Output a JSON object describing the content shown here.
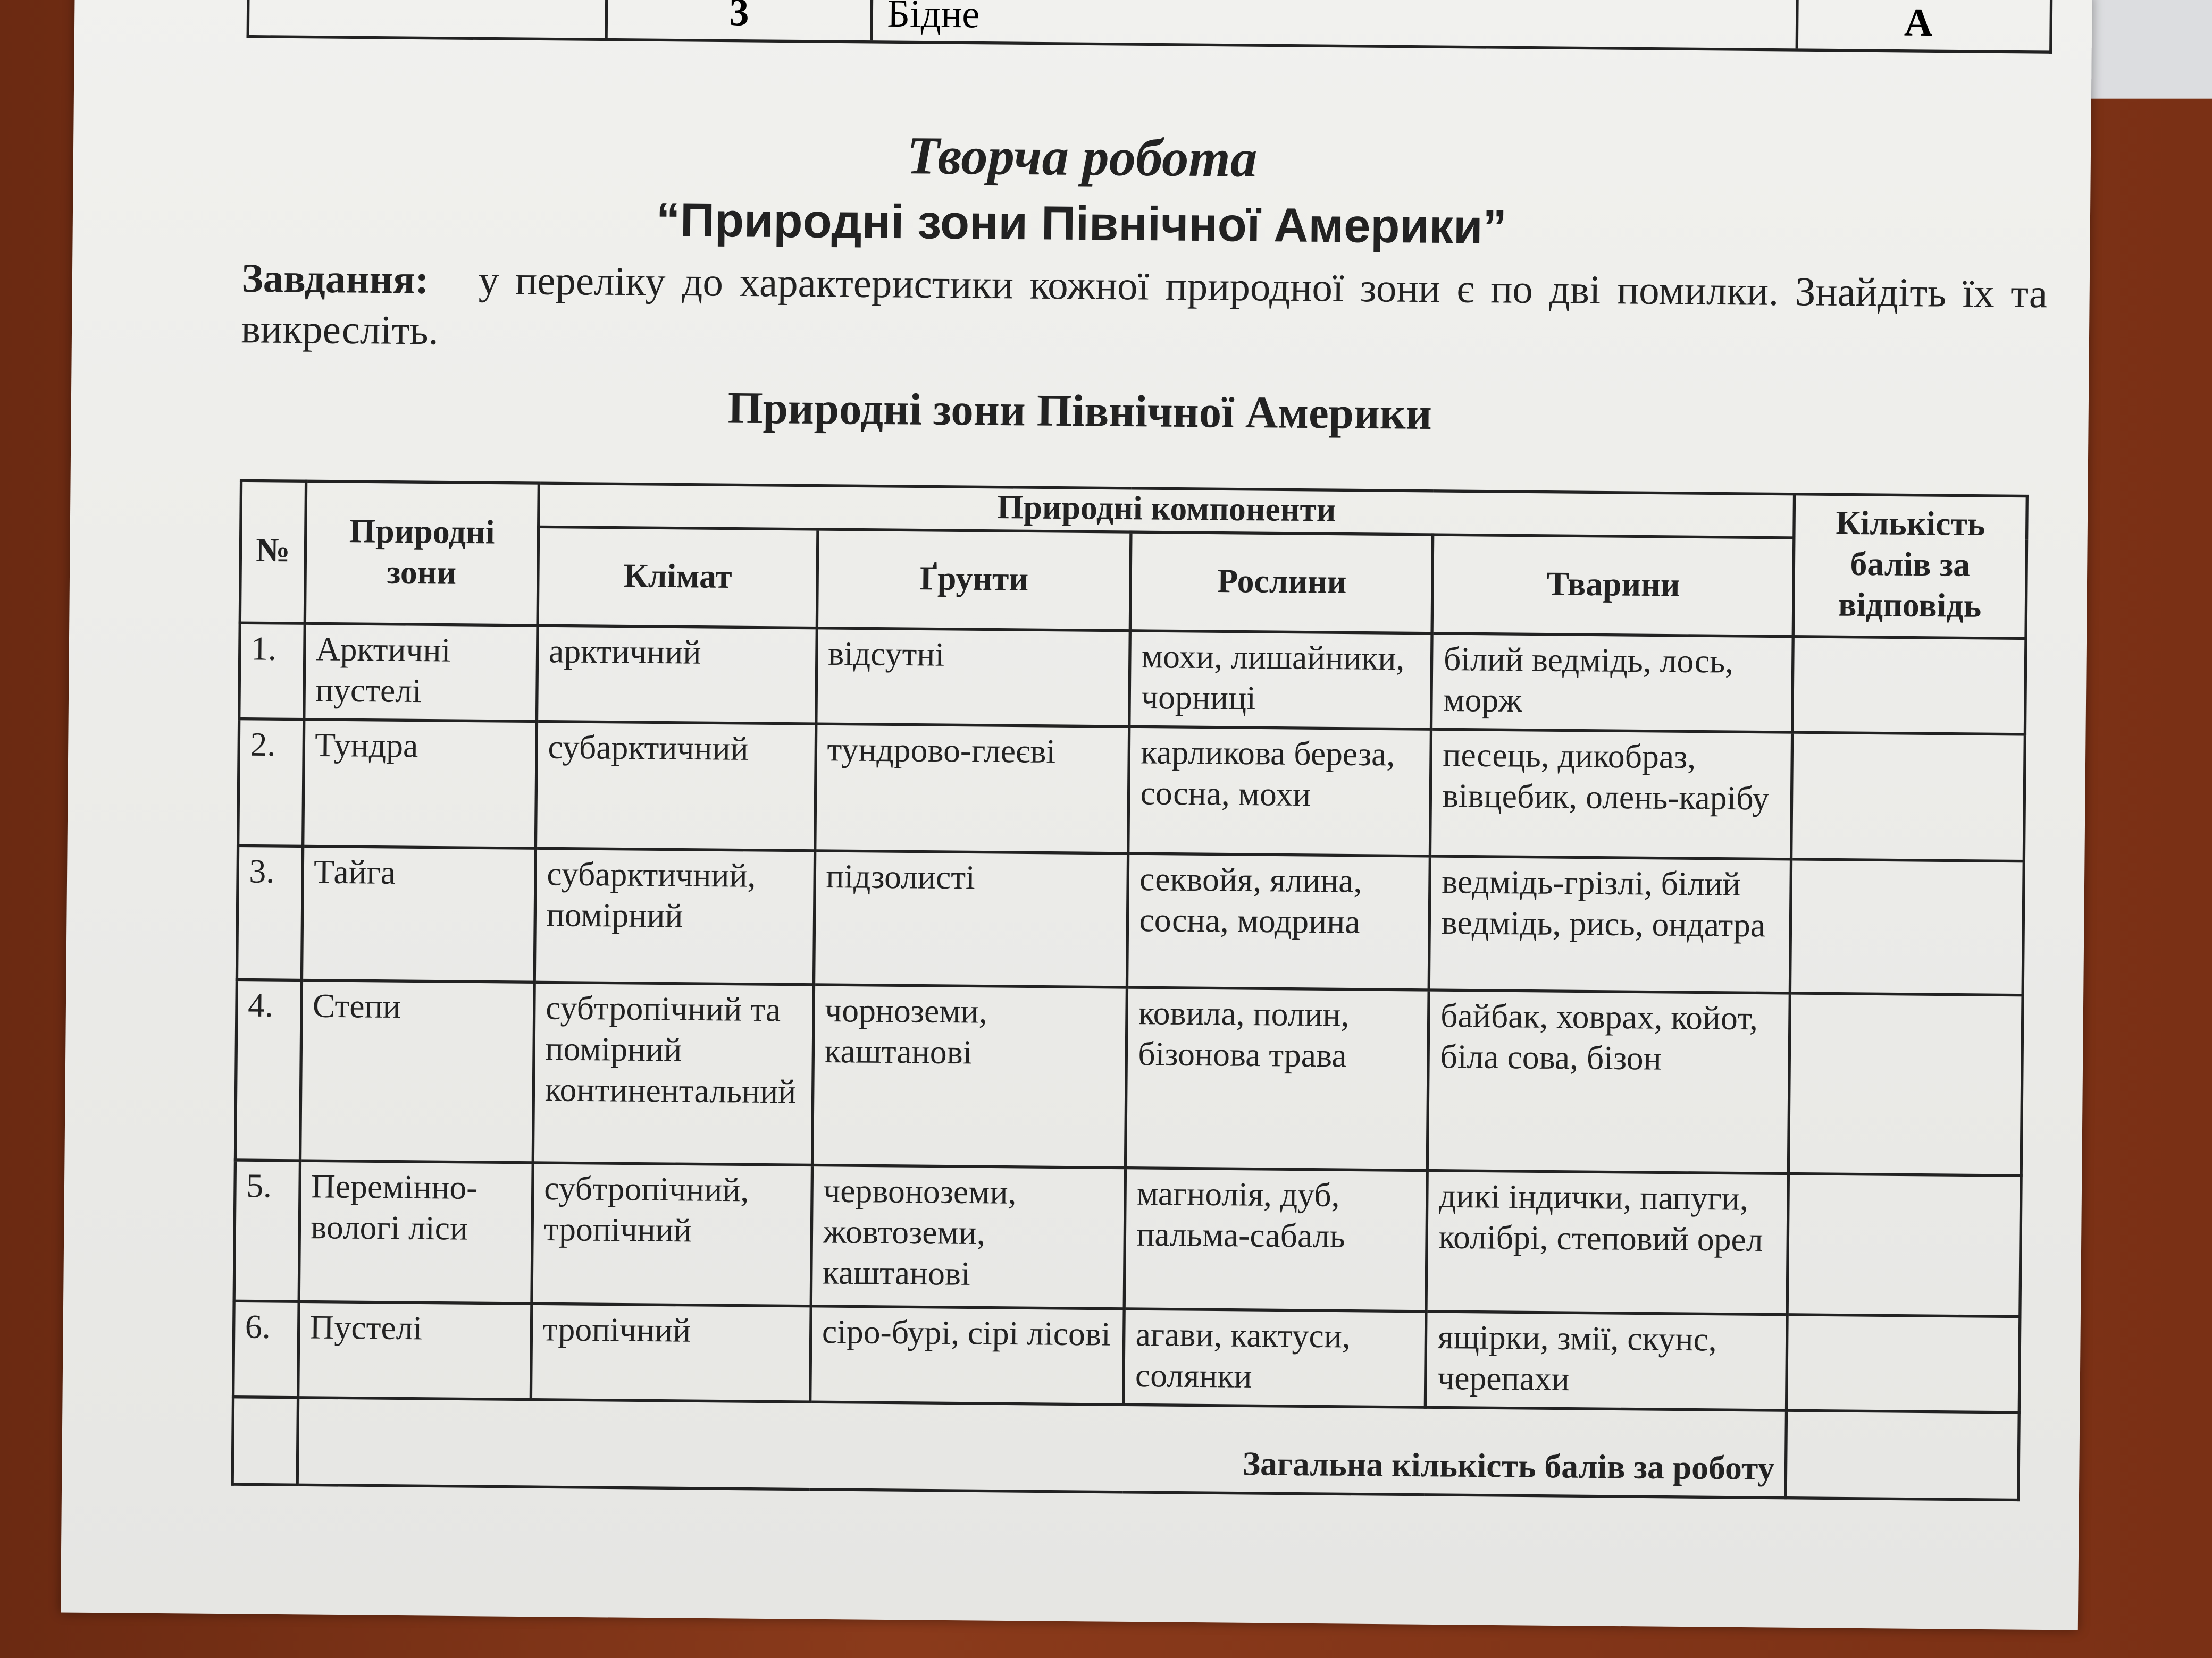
{
  "top_row": {
    "cells": [
      "3",
      "Бідне",
      "А"
    ]
  },
  "header": {
    "title": "Творча робота",
    "subtitle": "“Природні зони Північної Америки”"
  },
  "task": {
    "label": "Завдання:",
    "text": "у переліку до характеристики кожної природної зони є по дві помилки. Знайдіть їх та викресліть."
  },
  "table": {
    "title": "Природні зони Північної Америки",
    "headers": {
      "number": "№",
      "zones": "Природні зони",
      "components": "Природні компоненти",
      "climate": "Клімат",
      "soils": "Ґрунти",
      "plants": "Рослини",
      "animals": "Тварини",
      "points": "Кількість балів за відповідь"
    },
    "rows": [
      [
        "1.",
        "Арктичні пустелі",
        "арктичний",
        "відсутні",
        "мохи, лишайники, чорниці",
        "білий ведмідь, лось, морж"
      ],
      [
        "2.",
        "Тундра",
        "субарктичний",
        "тундрово-глеєві",
        "карликова береза, сосна, мохи",
        "песець, дикобраз, вівцебик, олень-карібу"
      ],
      [
        "3.",
        "Тайга",
        "субарктичний, помірний",
        "підзолисті",
        "секвойя, ялина, сосна, модрина",
        "ведмідь-грізлі, білий ведмідь, рись, ондатра"
      ],
      [
        "4.",
        "Степи",
        "субтропічний та помірний континентальний",
        "чорноземи, каштанові",
        "ковила, полин, бізонова трава",
        "байбак, ховрах, койот, біла сова, бізон"
      ],
      [
        "5.",
        "Перемінно-вологі ліси",
        "субтропічний, тропічний",
        "червоноземи, жовтоземи, каштанові",
        "магнолія, дуб, пальма-сабаль",
        "дикі індички, папуги, колібрі, степовий орел"
      ],
      [
        "6.",
        "Пустелі",
        "тропічний",
        "сіро-бурі, сірі лісові",
        "агави, кактуси, солянки",
        "ящірки, змії, скунс, черепахи"
      ]
    ],
    "total": "Загальна кількість балів за роботу"
  }
}
